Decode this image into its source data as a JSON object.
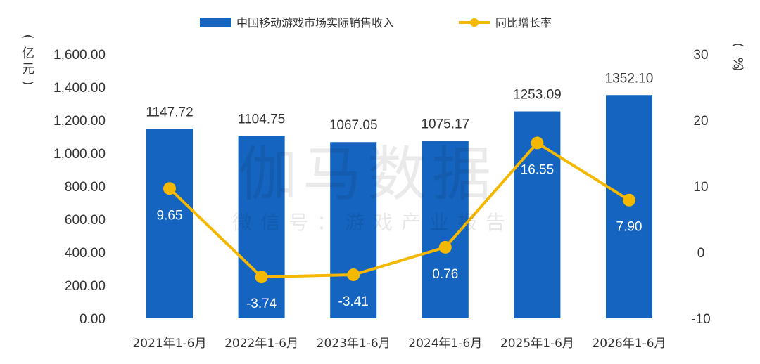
{
  "chart_data": {
    "type": "bar",
    "categories": [
      "2021年1-6月",
      "2022年1-6月",
      "2023年1-6月",
      "2024年1-6月",
      "2025年1-6月",
      "2026年1-6月"
    ],
    "series": [
      {
        "name": "中国移动游戏市场实际销售收入",
        "type": "bar",
        "axis": "left",
        "values": [
          1147.72,
          1104.75,
          1067.05,
          1075.17,
          1253.09,
          1352.1
        ],
        "labels": [
          "1147.72",
          "1104.75",
          "1067.05",
          "1075.17",
          "1253.09",
          "1352.10"
        ],
        "color": "#1565C0"
      },
      {
        "name": "同比增长率",
        "type": "line",
        "axis": "right",
        "values": [
          9.65,
          -3.74,
          -3.41,
          0.76,
          16.55,
          7.9
        ],
        "labels": [
          "9.65",
          "-3.74",
          "-3.41",
          "0.76",
          "16.55",
          "7.90"
        ],
        "color": "#F5B800"
      }
    ],
    "ylim_left": [
      0,
      1600
    ],
    "ylim_right": [
      -10,
      30
    ],
    "yticks_left": [
      "0.00",
      "200.00",
      "400.00",
      "600.00",
      "800.00",
      "1,000.00",
      "1,200.00",
      "1,400.00",
      "1,600.00"
    ],
    "yticks_right": [
      "-10",
      "0",
      "10",
      "20",
      "30"
    ],
    "ylabel_left": [
      "(",
      "亿",
      "元",
      ")"
    ],
    "ylabel_right": [
      "(",
      "%",
      ")"
    ],
    "legend_position": "top-center",
    "grid": false
  },
  "watermark": {
    "main": "伽马数据",
    "sub": "微信号：游戏产业报告"
  }
}
